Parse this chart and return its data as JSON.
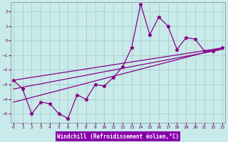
{
  "xlabel": "Windchill (Refroidissement éolien,°C)",
  "background_color": "#c8eaea",
  "grid_color": "#a8cece",
  "line_color": "#880088",
  "xlabel_bg": "#8800aa",
  "xlabel_fg": "#ffffff",
  "tick_color": "#660066",
  "x_ticks": [
    0,
    1,
    2,
    3,
    4,
    5,
    6,
    7,
    8,
    9,
    10,
    11,
    12,
    13,
    14,
    15,
    16,
    17,
    18,
    19,
    20,
    21,
    22,
    23
  ],
  "y_ticks": [
    -5,
    -4,
    -3,
    -2,
    -1,
    0,
    1,
    2
  ],
  "xlim": [
    -0.3,
    23.3
  ],
  "ylim": [
    -5.6,
    2.6
  ],
  "series1_x": [
    0,
    1,
    2,
    3,
    4,
    5,
    6,
    7,
    8,
    9,
    10,
    11,
    12,
    13,
    14,
    15,
    16,
    17,
    18,
    19,
    20,
    21,
    22,
    23
  ],
  "series1_y": [
    -2.7,
    -3.3,
    -5.0,
    -4.2,
    -4.3,
    -5.0,
    -5.3,
    -3.7,
    -4.0,
    -3.0,
    -3.1,
    -2.5,
    -1.8,
    -0.5,
    2.5,
    0.4,
    1.6,
    1.0,
    -0.6,
    0.2,
    0.1,
    -0.7,
    -0.7,
    -0.5
  ],
  "line1_x": [
    0,
    23
  ],
  "line1_y": [
    -2.7,
    -0.5
  ],
  "line2_x": [
    0,
    23
  ],
  "line2_y": [
    -3.3,
    -0.6
  ],
  "line3_x": [
    0,
    23
  ],
  "line3_y": [
    -4.2,
    -0.5
  ]
}
